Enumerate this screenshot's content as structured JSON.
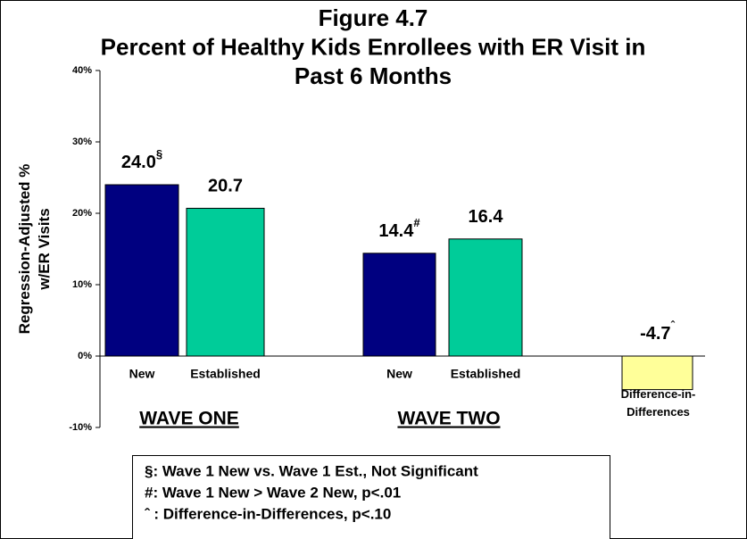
{
  "chart_data": {
    "type": "bar",
    "title": [
      "Figure 4.7",
      "Percent of Healthy Kids Enrollees with ER Visit in",
      "Past 6 Months"
    ],
    "ylabel": [
      "Regression-Adjusted   %",
      "w/ER Visits"
    ],
    "categories": [
      "New",
      "Established",
      "New",
      "Established",
      "Difference-in-Differences"
    ],
    "values": [
      24.0,
      20.7,
      14.4,
      16.4,
      -4.7
    ],
    "value_labels": [
      "24.0",
      "20.7",
      "14.4",
      "16.4",
      "-4.7"
    ],
    "superscripts": [
      "§",
      null,
      "#",
      null,
      "ˆ"
    ],
    "colors": [
      "#000080",
      "#00cc99",
      "#000080",
      "#00cc99",
      "#ffff99"
    ],
    "groups": [
      "WAVE ONE",
      "WAVE TWO"
    ],
    "ylim": [
      -10,
      40
    ],
    "yticks": [
      {
        "value": -10,
        "label": "-10%"
      },
      {
        "value": 0,
        "label": "0%"
      },
      {
        "value": 10,
        "label": "10%"
      },
      {
        "value": 20,
        "label": "20%"
      },
      {
        "value": 30,
        "label": "30%"
      },
      {
        "value": 40,
        "label": "40%"
      }
    ],
    "notes": [
      "§: Wave 1 New vs. Wave 1 Est., Not Significant",
      "#: Wave 1 New > Wave 2 New, p<.01",
      "ˆ :  Difference-in-Differences, p<.10"
    ]
  }
}
